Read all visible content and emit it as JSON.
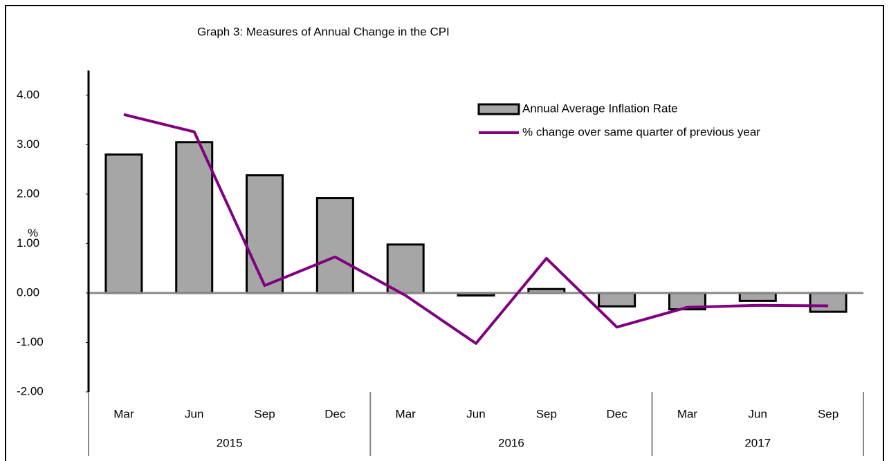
{
  "chart_data": {
    "type": "bar-line",
    "title": "Graph 3: Measures of Annual Change in the CPI",
    "y_label": "%",
    "categories": [
      "Mar",
      "Jun",
      "Sep",
      "Dec",
      "Mar",
      "Jun",
      "Sep",
      "Dec",
      "Mar",
      "Jun",
      "Sep"
    ],
    "groups": [
      {
        "label": "2015",
        "span": 4
      },
      {
        "label": "2016",
        "span": 4
      },
      {
        "label": "2017",
        "span": 3
      }
    ],
    "series": [
      {
        "name": "Annual Average Inflation Rate",
        "type": "bar",
        "color": "#a6a6a6",
        "values": [
          2.8,
          3.05,
          2.38,
          1.92,
          0.98,
          -0.05,
          0.08,
          -0.27,
          -0.33,
          -0.16,
          -0.38
        ]
      },
      {
        "name": "% change over same quarter of previous year",
        "type": "line",
        "color": "#800080",
        "values": [
          3.61,
          3.26,
          0.15,
          0.73,
          -0.05,
          -1.02,
          0.7,
          -0.69,
          -0.29,
          -0.25,
          -0.26
        ]
      }
    ],
    "ylim": [
      -2,
      4.5
    ],
    "yticks": [
      {
        "value": -2,
        "label": "-2.00"
      },
      {
        "value": -1,
        "label": "-1.00"
      },
      {
        "value": 0,
        "label": "0.00"
      },
      {
        "value": 1,
        "label": "1.00"
      },
      {
        "value": 2,
        "label": "2.00"
      },
      {
        "value": 3,
        "label": "3.00"
      },
      {
        "value": 4,
        "label": "4.00"
      }
    ]
  }
}
